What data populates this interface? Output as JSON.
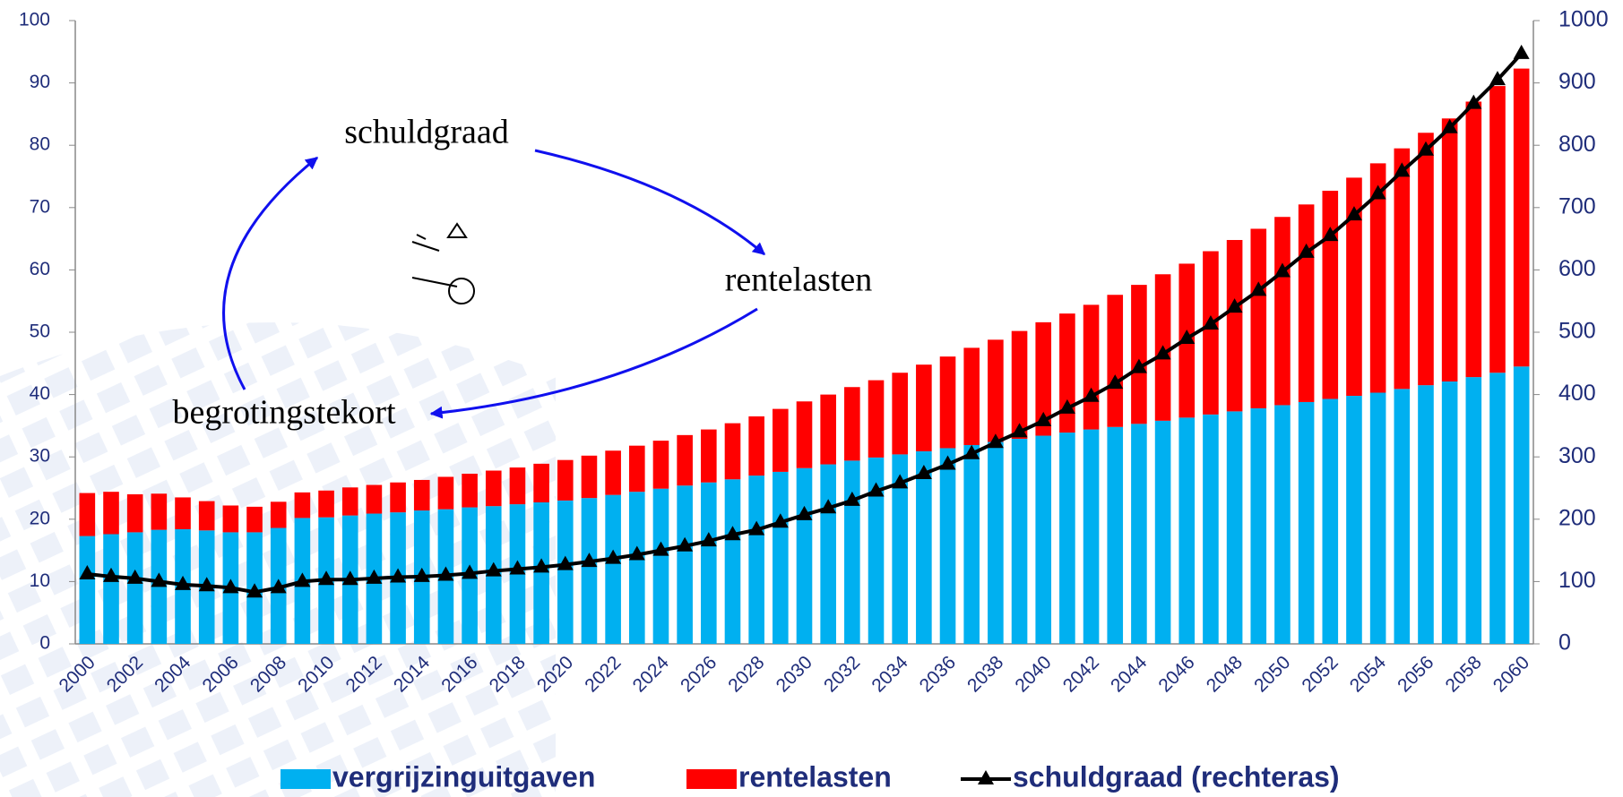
{
  "chart_data": {
    "type": "bar",
    "annotations": [
      "schuldgraad",
      "rentelasten",
      "begrotingstekort"
    ],
    "categories": [
      "2000",
      null,
      "2002",
      null,
      "2004",
      null,
      "2006",
      null,
      "2008",
      null,
      "2010",
      null,
      "2012",
      null,
      "2014",
      null,
      "2016",
      null,
      "2018",
      null,
      "2020",
      null,
      "2022",
      null,
      "2024",
      null,
      "2026",
      null,
      "2028",
      null,
      "2030",
      null,
      "2032",
      null,
      "2034",
      null,
      "2036",
      null,
      "2038",
      null,
      "2040",
      null,
      "2042",
      null,
      "2044",
      null,
      "2046",
      null,
      "2048",
      null,
      "2050",
      null,
      "2052",
      null,
      "2054",
      null,
      "2056",
      null,
      "2058",
      null,
      "2060"
    ],
    "series": [
      {
        "name": "vergrijzinguitgaven",
        "color": "#00b0f0",
        "values": [
          17.3,
          17.6,
          17.9,
          18.3,
          18.4,
          18.2,
          17.9,
          17.9,
          18.6,
          20.2,
          20.3,
          20.6,
          20.9,
          21.1,
          21.4,
          21.6,
          21.9,
          22.1,
          22.4,
          22.7,
          23.0,
          23.4,
          23.9,
          24.4,
          24.9,
          25.4,
          25.9,
          26.4,
          27.0,
          27.6,
          28.2,
          28.8,
          29.4,
          29.9,
          30.4,
          30.9,
          31.4,
          31.9,
          32.4,
          32.9,
          33.4,
          33.9,
          34.4,
          34.8,
          35.3,
          35.8,
          36.3,
          36.8,
          37.3,
          37.8,
          38.3,
          38.8,
          39.3,
          39.8,
          40.3,
          40.9,
          41.5,
          42.1,
          42.8,
          43.5,
          44.5
        ]
      },
      {
        "name": "rentelasten",
        "color": "#ff0000",
        "values": [
          6.9,
          6.8,
          6.1,
          5.8,
          5.1,
          4.7,
          4.3,
          4.1,
          4.2,
          4.1,
          4.3,
          4.5,
          4.6,
          4.8,
          4.9,
          5.2,
          5.4,
          5.7,
          5.9,
          6.2,
          6.5,
          6.8,
          7.1,
          7.4,
          7.7,
          8.1,
          8.5,
          9.0,
          9.5,
          10.1,
          10.7,
          11.2,
          11.8,
          12.4,
          13.1,
          13.9,
          14.7,
          15.6,
          16.4,
          17.3,
          18.2,
          19.1,
          20.0,
          21.2,
          22.3,
          23.5,
          24.7,
          26.2,
          27.5,
          28.8,
          30.2,
          31.7,
          33.4,
          35.0,
          36.8,
          38.6,
          40.5,
          42.2,
          44.2,
          46.0,
          47.8
        ]
      },
      {
        "name": "schuldgraad (rechteras)",
        "color": "#000000",
        "type": "line",
        "axis": "y2",
        "values": [
          112,
          108,
          105,
          100,
          95,
          93,
          90,
          83,
          90,
          100,
          103,
          103,
          105,
          107,
          108,
          110,
          113,
          117,
          120,
          123,
          127,
          132,
          137,
          143,
          150,
          157,
          165,
          175,
          183,
          195,
          207,
          218,
          230,
          245,
          258,
          273,
          288,
          305,
          323,
          340,
          358,
          378,
          397,
          418,
          443,
          465,
          490,
          513,
          540,
          567,
          597,
          628,
          655,
          688,
          722,
          758,
          792,
          828,
          867,
          905,
          947
        ]
      }
    ],
    "stacked": true,
    "ylim": [
      0,
      100
    ],
    "yticks": [
      0,
      10,
      20,
      30,
      40,
      50,
      60,
      70,
      80,
      90,
      100
    ],
    "y2lim": [
      0,
      1000
    ],
    "y2ticks": [
      0,
      100,
      200,
      300,
      400,
      500,
      600,
      700,
      800,
      900,
      1000
    ],
    "legend": "bottom"
  }
}
